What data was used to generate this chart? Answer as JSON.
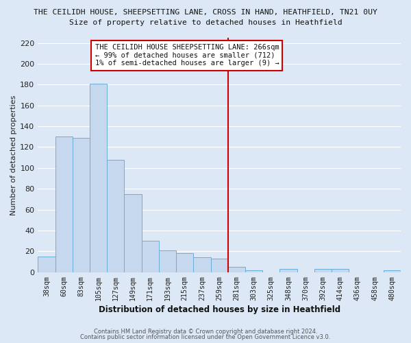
{
  "title": "THE CEILIDH HOUSE, SHEEPSETTING LANE, CROSS IN HAND, HEATHFIELD, TN21 0UY",
  "subtitle": "Size of property relative to detached houses in Heathfield",
  "xlabel": "Distribution of detached houses by size in Heathfield",
  "ylabel": "Number of detached properties",
  "bar_labels": [
    "38sqm",
    "60sqm",
    "83sqm",
    "105sqm",
    "127sqm",
    "149sqm",
    "171sqm",
    "193sqm",
    "215sqm",
    "237sqm",
    "259sqm",
    "281sqm",
    "303sqm",
    "325sqm",
    "348sqm",
    "370sqm",
    "392sqm",
    "414sqm",
    "436sqm",
    "458sqm",
    "480sqm"
  ],
  "bar_values": [
    15,
    130,
    129,
    181,
    108,
    75,
    30,
    21,
    18,
    14,
    13,
    5,
    2,
    0,
    3,
    0,
    3,
    3,
    0,
    0,
    2
  ],
  "bar_color": "#c5d8ee",
  "bar_edge_color": "#6aaed6",
  "vline_color": "#cc0000",
  "ylim": [
    0,
    225
  ],
  "yticks": [
    0,
    20,
    40,
    60,
    80,
    100,
    120,
    140,
    160,
    180,
    200,
    220
  ],
  "annotation_title": "THE CEILIDH HOUSE SHEEPSETTING LANE: 266sqm",
  "annotation_line1": "← 99% of detached houses are smaller (712)",
  "annotation_line2": "1% of semi-detached houses are larger (9) →",
  "annotation_box_color": "#ffffff",
  "annotation_box_edge": "#cc0000",
  "footer1": "Contains HM Land Registry data © Crown copyright and database right 2024.",
  "footer2": "Contains public sector information licensed under the Open Government Licence v3.0.",
  "bg_color": "#dce8f5",
  "plot_bg_color": "#dce8f5",
  "grid_color": "#ffffff"
}
